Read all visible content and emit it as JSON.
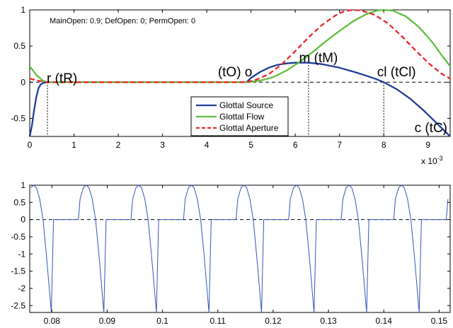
{
  "chart_data": [
    {
      "type": "line",
      "annotation": "MainOpen: 0.9; DefOpen: 0; PermOpen: 0",
      "xlim": [
        0,
        9.5
      ],
      "ylim": [
        -0.75,
        1
      ],
      "x_exponent_label": "x 10",
      "x_exponent_power": "-3",
      "x_ticks": [
        "0",
        "1",
        "2",
        "3",
        "4",
        "5",
        "6",
        "7",
        "8",
        "9"
      ],
      "y_ticks": [
        "-0.5",
        "0",
        "0.5",
        "1"
      ],
      "grid": false,
      "legend_position": "inside-center",
      "points": [
        {
          "label": "r (tR)",
          "x": 0.4
        },
        {
          "label": "(tO) o",
          "x": 4.9
        },
        {
          "label": "m (tM)",
          "x": 6.3
        },
        {
          "label": "cl (tCl)",
          "x": 8.0
        },
        {
          "label": "c (tC)",
          "x": 9.5
        }
      ],
      "series": [
        {
          "name": "Glottal Source",
          "color": "#1f3d99",
          "style": "solid",
          "points": [
            [
              0,
              -0.75
            ],
            [
              0.05,
              -0.6
            ],
            [
              0.1,
              -0.38
            ],
            [
              0.15,
              -0.2
            ],
            [
              0.2,
              -0.08
            ],
            [
              0.25,
              -0.03
            ],
            [
              0.3,
              -0.01
            ],
            [
              0.4,
              0
            ],
            [
              4.9,
              0
            ],
            [
              5.0,
              0.06
            ],
            [
              5.2,
              0.14
            ],
            [
              5.4,
              0.2
            ],
            [
              5.6,
              0.24
            ],
            [
              5.8,
              0.26
            ],
            [
              6.0,
              0.27
            ],
            [
              6.3,
              0.27
            ],
            [
              6.6,
              0.25
            ],
            [
              7.0,
              0.2
            ],
            [
              7.4,
              0.13
            ],
            [
              7.8,
              0.05
            ],
            [
              8.0,
              0
            ],
            [
              8.3,
              -0.1
            ],
            [
              8.6,
              -0.23
            ],
            [
              8.9,
              -0.39
            ],
            [
              9.2,
              -0.57
            ],
            [
              9.5,
              -0.75
            ]
          ]
        },
        {
          "name": "Glottal Flow",
          "color": "#5fbf3c",
          "style": "solid",
          "points": [
            [
              0,
              0.22
            ],
            [
              0.15,
              0.1
            ],
            [
              0.3,
              0.02
            ],
            [
              0.4,
              0
            ],
            [
              4.9,
              0
            ],
            [
              5.2,
              0.02
            ],
            [
              5.5,
              0.07
            ],
            [
              5.8,
              0.16
            ],
            [
              6.1,
              0.28
            ],
            [
              6.4,
              0.42
            ],
            [
              6.7,
              0.57
            ],
            [
              7.0,
              0.71
            ],
            [
              7.3,
              0.84
            ],
            [
              7.6,
              0.94
            ],
            [
              7.85,
              0.99
            ],
            [
              8.0,
              1.0
            ],
            [
              8.2,
              0.99
            ],
            [
              8.5,
              0.91
            ],
            [
              8.8,
              0.76
            ],
            [
              9.1,
              0.55
            ],
            [
              9.3,
              0.38
            ],
            [
              9.5,
              0.22
            ]
          ]
        },
        {
          "name": "Glottal Aperture",
          "color": "#e8272c",
          "style": "dashed",
          "points": [
            [
              0,
              0.05
            ],
            [
              0.2,
              0.02
            ],
            [
              0.4,
              0
            ],
            [
              4.9,
              0
            ],
            [
              5.1,
              0.03
            ],
            [
              5.4,
              0.11
            ],
            [
              5.7,
              0.25
            ],
            [
              6.0,
              0.43
            ],
            [
              6.3,
              0.62
            ],
            [
              6.6,
              0.79
            ],
            [
              6.9,
              0.92
            ],
            [
              7.1,
              0.98
            ],
            [
              7.3,
              1.0
            ],
            [
              7.5,
              0.99
            ],
            [
              7.8,
              0.93
            ],
            [
              8.1,
              0.81
            ],
            [
              8.4,
              0.64
            ],
            [
              8.7,
              0.45
            ],
            [
              9.0,
              0.27
            ],
            [
              9.3,
              0.12
            ],
            [
              9.5,
              0.05
            ]
          ]
        }
      ]
    },
    {
      "type": "line",
      "xlim": [
        0.076,
        0.152
      ],
      "ylim": [
        -2.7,
        1
      ],
      "x_ticks": [
        "0.08",
        "0.09",
        "0.1",
        "0.11",
        "0.12",
        "0.13",
        "0.14",
        "0.15"
      ],
      "y_ticks": [
        "-2.5",
        "-2",
        "-1.5",
        "-1",
        "-0.5",
        "0",
        "0.5",
        "1"
      ],
      "grid": false,
      "period": 0.0095,
      "first_cycle_start": 0.0704,
      "series": [
        {
          "name": "",
          "color": "#3355bb",
          "style": "solid",
          "cycle_shape": [
            [
              0.0004,
              0
            ],
            [
              0.0049,
              0
            ],
            [
              0.0052,
              0.6
            ],
            [
              0.0058,
              0.93
            ],
            [
              0.0063,
              1.0
            ],
            [
              0.0068,
              0.93
            ],
            [
              0.0074,
              0.6
            ],
            [
              0.008,
              0
            ],
            [
              0.0086,
              -1.0
            ],
            [
              0.0091,
              -1.95
            ],
            [
              0.0095,
              -2.7
            ]
          ]
        }
      ]
    }
  ]
}
